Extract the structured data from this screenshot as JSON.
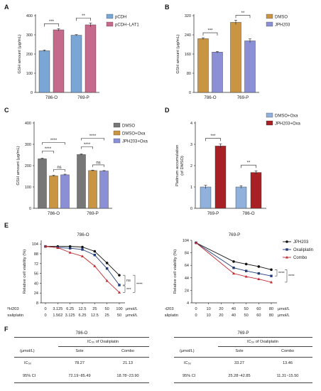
{
  "panels": {
    "A": "A",
    "B": "B",
    "C": "C",
    "D": "D",
    "E": "E",
    "F": "F"
  },
  "colors": {
    "pcdh": "#7aa6d6",
    "pcdh_lat1": "#c66a8c",
    "dmso": "#c99543",
    "jph203": "#8b90d6",
    "gray": "#777777",
    "dmso_oxa_blue": "#8fb1db",
    "jph_oxa_red": "#a82024",
    "jph203_line": "#111111",
    "oxa_line": "#1f3a7a",
    "combo_line": "#c0292f"
  },
  "chart_data": [
    {
      "id": "A",
      "type": "bar",
      "ylabel": "GSH amount (μg/mL)",
      "ylim": [
        0,
        400
      ],
      "yticks": [
        0,
        100,
        200,
        300,
        400
      ],
      "categories": [
        "786-O",
        "769-P"
      ],
      "series": [
        {
          "name": "pCDH",
          "values": [
            217,
            298
          ],
          "err": [
            4,
            3
          ]
        },
        {
          "name": "pCDH−LAT1",
          "values": [
            326,
            352
          ],
          "err": [
            6,
            10
          ]
        }
      ],
      "legend": "top-right",
      "significance": [
        "***",
        "**"
      ]
    },
    {
      "id": "B",
      "type": "bar",
      "ylabel": "GSH amount (μg/mL)",
      "ylim": [
        0,
        320
      ],
      "yticks": [
        0,
        80,
        160,
        240,
        320
      ],
      "categories": [
        "786-O",
        "769-P"
      ],
      "series": [
        {
          "name": "DMSO",
          "values": [
            224,
            292
          ],
          "err": [
            4,
            9
          ]
        },
        {
          "name": "JPH203",
          "values": [
            168,
            215
          ],
          "err": [
            3,
            8
          ]
        }
      ],
      "legend": "top-right",
      "significance": [
        "***",
        "**"
      ]
    },
    {
      "id": "C",
      "type": "bar",
      "ylabel": "GSH amount (μg/mL)",
      "ylim": [
        0,
        400
      ],
      "yticks": [
        0,
        100,
        200,
        300,
        400
      ],
      "categories": [
        "786-O",
        "769-P"
      ],
      "series": [
        {
          "name": "DMSO",
          "values": [
            232,
            252
          ],
          "err": [
            3,
            3
          ]
        },
        {
          "name": "DMSO+Oxa",
          "values": [
            152,
            177
          ],
          "err": [
            3,
            2
          ]
        },
        {
          "name": "JPH203+Oxa",
          "values": [
            157,
            175
          ],
          "err": [
            3,
            2
          ]
        }
      ],
      "legend": "top-right",
      "significance": [
        "****",
        "****",
        "ns",
        "****",
        "****",
        "ns"
      ]
    },
    {
      "id": "D",
      "type": "bar",
      "ylabel": "Platinum accumulation\n(of DMSO)",
      "ylim": [
        0,
        4
      ],
      "yticks": [
        0,
        1,
        2,
        3,
        4
      ],
      "categories": [
        "769-P",
        "786-O"
      ],
      "series": [
        {
          "name": "DMSO+Oxa",
          "values": [
            1.0,
            1.0
          ],
          "err": [
            0.08,
            0.06
          ]
        },
        {
          "name": "JPH203+Oxa",
          "values": [
            2.92,
            1.68
          ],
          "err": [
            0.1,
            0.08
          ]
        }
      ],
      "legend": "top-right",
      "significance": [
        "***",
        "**"
      ]
    },
    {
      "id": "E1",
      "type": "line",
      "title": "786-O",
      "ylabel": "Relative cell viability (%)",
      "ylim": [
        8,
        110
      ],
      "yticks": [
        8,
        24,
        40,
        56,
        72,
        88,
        104
      ],
      "x_jph203": [
        "0",
        "3.125",
        "6.25",
        "12.5",
        "25",
        "50",
        "100"
      ],
      "x_oxaliplatin": [
        "0",
        "1.562",
        "3.125",
        "6.25",
        "12.5",
        "25",
        "50"
      ],
      "x_units": "μmol/L",
      "series": [
        {
          "name": "JPH203",
          "values": [
            100,
            100,
            100,
            99,
            92,
            73,
            53
          ]
        },
        {
          "name": "Oxaliplatin",
          "values": [
            100,
            98,
            97,
            95,
            86,
            64,
            37
          ]
        },
        {
          "name": "Combo",
          "values": [
            100,
            98,
            90,
            84,
            68,
            44,
            25
          ]
        }
      ],
      "significance": [
        "ns",
        "***",
        "****"
      ]
    },
    {
      "id": "E2",
      "type": "line",
      "title": "769-P",
      "ylabel": "Relative cell viability (%)",
      "ylim": [
        4,
        104
      ],
      "yticks": [
        4,
        24,
        44,
        64,
        84,
        104
      ],
      "x_jph203": [
        "0",
        "10",
        "20",
        "40",
        "50",
        "60",
        "80"
      ],
      "x_oxaliplatin": [
        "0",
        "10",
        "20",
        "40",
        "50",
        "60",
        "80"
      ],
      "x_units": "μmol/L",
      "series": [
        {
          "name": "JPH203",
          "values": [
            100,
            null,
            null,
            70,
            66,
            62,
            57
          ]
        },
        {
          "name": "Oxaliplatin",
          "values": [
            100,
            null,
            null,
            60,
            55,
            51,
            47
          ]
        },
        {
          "name": "Combo",
          "values": [
            100,
            null,
            null,
            51,
            46,
            42,
            37
          ]
        }
      ],
      "significance": [
        "****",
        "****"
      ],
      "legend": [
        "JPH203",
        "Oxaliplatin",
        "Combo"
      ]
    }
  ],
  "x_row_labels": {
    "jph203": "JPH203",
    "oxaliplatin": "Oxaliplatin"
  },
  "tables": [
    {
      "title": "786-O",
      "header_main": "IC₅₀ of Oxaliplatin",
      "unit_label": "(μmol/L)",
      "col1": "Sole",
      "col2": "Combo",
      "rows": [
        [
          "IC₅₀",
          "78.27",
          "21.13"
        ],
        [
          "95% CI",
          "72.19~85.49",
          "18.78~23.90"
        ]
      ]
    },
    {
      "title": "769-P",
      "header_main": "IC₅₀ of Oxaliplatin",
      "unit_label": "(μmol/L)",
      "col1": "Sole",
      "col2": "Combo",
      "rows": [
        [
          "IC₅₀",
          "33.27",
          "13.46"
        ],
        [
          "95% CI",
          "25.28~42.85",
          "11.31~15.50"
        ]
      ]
    }
  ]
}
